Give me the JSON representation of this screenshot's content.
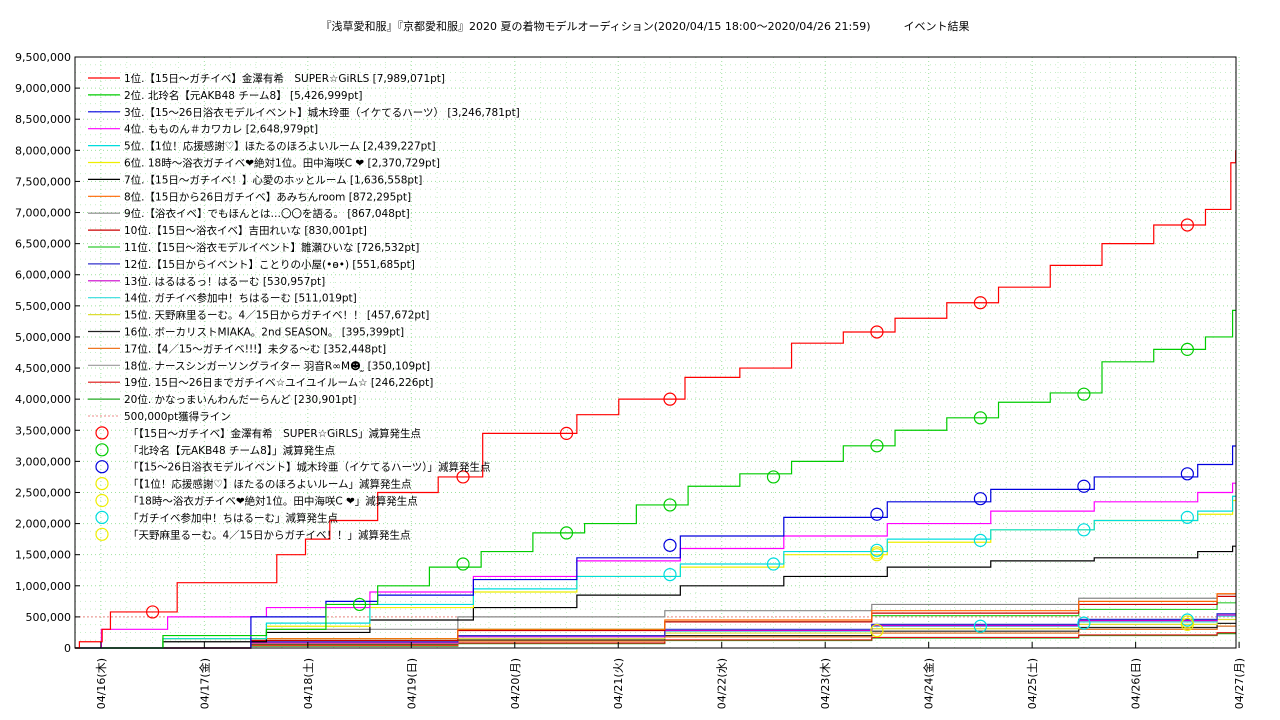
{
  "chart_data": {
    "type": "line",
    "title": "『浅草愛和服』『京都愛和服』2020 夏の着物モデルオーディション(2020/04/15 18:00〜2020/04/26 21:59)　　　イベント結果",
    "xlabel": "",
    "ylabel": "",
    "ylim": [
      0,
      9500000
    ],
    "ytick_step": 500000,
    "y_ticks": [
      "0",
      "500,000",
      "1,000,000",
      "1,500,000",
      "2,000,000",
      "2,500,000",
      "3,000,000",
      "3,500,000",
      "4,000,000",
      "4,500,000",
      "5,000,000",
      "5,500,000",
      "6,000,000",
      "6,500,000",
      "7,000,000",
      "7,500,000",
      "8,000,000",
      "8,500,000",
      "9,000,000",
      "9,500,000"
    ],
    "x_ticks": [
      "04/16(木)",
      "04/17(金)",
      "04/18(土)",
      "04/19(日)",
      "04/20(月)",
      "04/21(火)",
      "04/22(水)",
      "04/23(木)",
      "04/24(金)",
      "04/25(土)",
      "04/26(日)",
      "04/27(月)"
    ],
    "x_range_days": [
      0,
      11.22
    ],
    "x_start_offset_days": 0.25,
    "grid": true,
    "legend_position": "top-left",
    "series": [
      {
        "name": "1位.【15日〜ガチイベ】金澤有希　SUPER☆GiRLS [7,989,071pt]",
        "color": "#ff0000",
        "final": 7989071,
        "points": [
          [
            0,
            0
          ],
          [
            0.05,
            100000
          ],
          [
            0.3,
            300000
          ],
          [
            0.35,
            580000
          ],
          [
            1.1,
            1050000
          ],
          [
            2.1,
            1500000
          ],
          [
            2.25,
            1750000
          ],
          [
            2.5,
            2050000
          ],
          [
            3.0,
            2500000
          ],
          [
            3.6,
            2750000
          ],
          [
            4.0,
            3450000
          ],
          [
            5.0,
            3750000
          ],
          [
            5.3,
            4000000
          ],
          [
            6.0,
            4350000
          ],
          [
            6.5,
            4500000
          ],
          [
            7.0,
            4900000
          ],
          [
            7.5,
            5080000
          ],
          [
            8.0,
            5300000
          ],
          [
            8.5,
            5550000
          ],
          [
            9.0,
            5800000
          ],
          [
            9.5,
            6150000
          ],
          [
            10.0,
            6500000
          ],
          [
            10.5,
            6800000
          ],
          [
            11.0,
            7050000
          ],
          [
            11.2,
            7800000
          ],
          [
            11.22,
            7989071
          ]
        ]
      },
      {
        "name": "2位. 北玲名【元AKB48 チーム8】 [5,426,999pt]",
        "color": "#00cc00",
        "final": 5426999,
        "points": [
          [
            0,
            0
          ],
          [
            1.0,
            200000
          ],
          [
            2.0,
            300000
          ],
          [
            2.5,
            700000
          ],
          [
            3.0,
            1000000
          ],
          [
            3.5,
            1300000
          ],
          [
            4.0,
            1550000
          ],
          [
            4.5,
            1850000
          ],
          [
            5.0,
            2000000
          ],
          [
            5.5,
            2300000
          ],
          [
            6.0,
            2600000
          ],
          [
            6.5,
            2800000
          ],
          [
            7.0,
            3000000
          ],
          [
            7.5,
            3250000
          ],
          [
            8.0,
            3500000
          ],
          [
            8.5,
            3700000
          ],
          [
            9.0,
            3950000
          ],
          [
            9.5,
            4100000
          ],
          [
            10.0,
            4600000
          ],
          [
            10.5,
            4800000
          ],
          [
            11.0,
            5000000
          ],
          [
            11.22,
            5426999
          ]
        ]
      },
      {
        "name": "3位.【15〜26日浴衣モデルイベント】城木玲亜（イケてるハーツ） [3,246,781pt]",
        "color": "#0000dd",
        "final": 3246781,
        "points": [
          [
            0,
            0
          ],
          [
            2.0,
            500000
          ],
          [
            2.5,
            750000
          ],
          [
            3.0,
            850000
          ],
          [
            4.0,
            1100000
          ],
          [
            5.0,
            1450000
          ],
          [
            6.0,
            1800000
          ],
          [
            7.0,
            2100000
          ],
          [
            8.0,
            2350000
          ],
          [
            9.0,
            2550000
          ],
          [
            10.0,
            2750000
          ],
          [
            11.0,
            2950000
          ],
          [
            11.22,
            3246781
          ]
        ]
      },
      {
        "name": "4位. もものん＃カワカレ [2,648,979pt]",
        "color": "#ff00ff",
        "final": 2648979,
        "points": [
          [
            0,
            0
          ],
          [
            0.3,
            300000
          ],
          [
            1.0,
            500000
          ],
          [
            2.0,
            650000
          ],
          [
            3.0,
            900000
          ],
          [
            4.0,
            1150000
          ],
          [
            5.0,
            1400000
          ],
          [
            6.0,
            1600000
          ],
          [
            7.0,
            1800000
          ],
          [
            8.0,
            2000000
          ],
          [
            9.0,
            2200000
          ],
          [
            10.0,
            2350000
          ],
          [
            11.0,
            2500000
          ],
          [
            11.22,
            2648979
          ]
        ]
      },
      {
        "name": "5位.【1位！応援感謝♡】ほたるのほろよいルーム [2,439,227pt]",
        "color": "#00dddd",
        "final": 2439227,
        "points": [
          [
            0,
            0
          ],
          [
            1.0,
            150000
          ],
          [
            2.0,
            400000
          ],
          [
            3.0,
            700000
          ],
          [
            4.0,
            950000
          ],
          [
            5.0,
            1150000
          ],
          [
            6.0,
            1350000
          ],
          [
            7.0,
            1550000
          ],
          [
            8.0,
            1750000
          ],
          [
            9.0,
            1900000
          ],
          [
            10.0,
            2050000
          ],
          [
            11.0,
            2200000
          ],
          [
            11.22,
            2439227
          ]
        ]
      },
      {
        "name": "6位. 18時〜浴衣ガチイベ❤絶対1位。田中海咲C ❤ [2,370,729pt]",
        "color": "#eeee00",
        "final": 2370729,
        "points": [
          [
            0,
            0
          ],
          [
            1.0,
            150000
          ],
          [
            2.0,
            350000
          ],
          [
            3.0,
            650000
          ],
          [
            4.0,
            900000
          ],
          [
            5.0,
            1150000
          ],
          [
            6.0,
            1300000
          ],
          [
            7.0,
            1500000
          ],
          [
            8.0,
            1700000
          ],
          [
            9.0,
            1900000
          ],
          [
            10.0,
            2050000
          ],
          [
            11.0,
            2150000
          ],
          [
            11.22,
            2370729
          ]
        ]
      },
      {
        "name": "7位.【15日〜ガチイベ！】心愛のホッとルーム [1,636,558pt]",
        "color": "#000000",
        "final": 1636558,
        "points": [
          [
            0,
            0
          ],
          [
            1.0,
            100000
          ],
          [
            2.0,
            250000
          ],
          [
            3.0,
            450000
          ],
          [
            4.0,
            650000
          ],
          [
            5.0,
            850000
          ],
          [
            6.0,
            1000000
          ],
          [
            7.0,
            1150000
          ],
          [
            8.0,
            1300000
          ],
          [
            9.0,
            1400000
          ],
          [
            10.0,
            1450000
          ],
          [
            11.0,
            1550000
          ],
          [
            11.22,
            1636558
          ]
        ]
      },
      {
        "name": "8位.【15日から26日ガチイベ】あみちんroom [872,295pt]",
        "color": "#ff6600",
        "final": 872295,
        "points": [
          [
            0,
            0
          ],
          [
            2.0,
            150000
          ],
          [
            4.0,
            300000
          ],
          [
            6.0,
            450000
          ],
          [
            8.0,
            600000
          ],
          [
            10.0,
            750000
          ],
          [
            11.22,
            872295
          ]
        ]
      },
      {
        "name": "9位.【浴衣イベ】でもほんとは…〇〇を語る。 [867,048pt]",
        "color": "#888888",
        "final": 867048,
        "points": [
          [
            0,
            0
          ],
          [
            1.0,
            150000
          ],
          [
            2.0,
            300000
          ],
          [
            4.0,
            500000
          ],
          [
            6.0,
            600000
          ],
          [
            8.0,
            700000
          ],
          [
            10.0,
            800000
          ],
          [
            11.22,
            867048
          ]
        ]
      },
      {
        "name": "10位.【15日〜浴衣イベ】吉田れいな [830,001pt]",
        "color": "#cc0000",
        "final": 830001,
        "points": [
          [
            0,
            0
          ],
          [
            2.0,
            120000
          ],
          [
            4.0,
            280000
          ],
          [
            6.0,
            420000
          ],
          [
            8.0,
            560000
          ],
          [
            10.0,
            700000
          ],
          [
            11.22,
            830001
          ]
        ]
      },
      {
        "name": "11位.【15日〜浴衣モデルイベント】雛瀬ひいな [726,532pt]",
        "color": "#33cc33",
        "final": 726532,
        "points": [
          [
            0,
            0
          ],
          [
            2.0,
            150000
          ],
          [
            4.0,
            300000
          ],
          [
            6.0,
            420000
          ],
          [
            8.0,
            520000
          ],
          [
            10.0,
            620000
          ],
          [
            11.22,
            726532
          ]
        ]
      },
      {
        "name": "12位.【15日からイベント】ことりの小屋(•ө•) [551,685pt]",
        "color": "#3333cc",
        "final": 551685,
        "points": [
          [
            0,
            0
          ],
          [
            2.0,
            100000
          ],
          [
            4.0,
            200000
          ],
          [
            6.0,
            300000
          ],
          [
            8.0,
            380000
          ],
          [
            10.0,
            460000
          ],
          [
            11.22,
            551685
          ]
        ]
      },
      {
        "name": "13位. はるはるっ！はるーむ [530,957pt]",
        "color": "#cc00cc",
        "final": 530957,
        "points": [
          [
            0,
            0
          ],
          [
            2.0,
            80000
          ],
          [
            4.0,
            180000
          ],
          [
            6.0,
            280000
          ],
          [
            8.0,
            360000
          ],
          [
            10.0,
            440000
          ],
          [
            11.22,
            530957
          ]
        ]
      },
      {
        "name": "14位. ガチイベ参加中！ちはるーむ [511,019pt]",
        "color": "#33dddd",
        "final": 511019,
        "points": [
          [
            0,
            0
          ],
          [
            2.0,
            90000
          ],
          [
            4.0,
            190000
          ],
          [
            6.0,
            270000
          ],
          [
            8.0,
            350000
          ],
          [
            10.0,
            420000
          ],
          [
            11.22,
            511019
          ]
        ]
      },
      {
        "name": "15位. 天野麻里るーむ。4／15日からガチイベ！！ [457,672pt]",
        "color": "#dddd33",
        "final": 457672,
        "points": [
          [
            0,
            0
          ],
          [
            2.0,
            70000
          ],
          [
            4.0,
            150000
          ],
          [
            6.0,
            240000
          ],
          [
            8.0,
            310000
          ],
          [
            10.0,
            380000
          ],
          [
            11.22,
            457672
          ]
        ]
      },
      {
        "name": "16位. ボーカリストMIAKA。2nd SEASON。 [395,399pt]",
        "color": "#222222",
        "final": 395399,
        "points": [
          [
            0,
            0
          ],
          [
            2.0,
            60000
          ],
          [
            4.0,
            130000
          ],
          [
            6.0,
            200000
          ],
          [
            8.0,
            270000
          ],
          [
            10.0,
            330000
          ],
          [
            11.22,
            395399
          ]
        ]
      },
      {
        "name": "17位.【4／15〜ガチイベ!!!】未夕る〜む [352,448pt]",
        "color": "#ee7722",
        "final": 352448,
        "points": [
          [
            0,
            0
          ],
          [
            2.0,
            50000
          ],
          [
            4.0,
            110000
          ],
          [
            6.0,
            180000
          ],
          [
            8.0,
            240000
          ],
          [
            10.0,
            300000
          ],
          [
            11.22,
            352448
          ]
        ]
      },
      {
        "name": "18位. ナースシンガーソングライター 羽音R∞M☻ ̫ [350,109pt]",
        "color": "#999999",
        "final": 350109,
        "points": [
          [
            0,
            0
          ],
          [
            2.0,
            60000
          ],
          [
            4.0,
            120000
          ],
          [
            6.0,
            180000
          ],
          [
            8.0,
            240000
          ],
          [
            10.0,
            300000
          ],
          [
            11.22,
            350109
          ]
        ]
      },
      {
        "name": "19位. 15日〜26日までガチイベ☆ユイユイルーム☆ [246,226pt]",
        "color": "#dd1111",
        "final": 246226,
        "points": [
          [
            0,
            0
          ],
          [
            2.0,
            40000
          ],
          [
            4.0,
            80000
          ],
          [
            6.0,
            130000
          ],
          [
            8.0,
            170000
          ],
          [
            10.0,
            210000
          ],
          [
            11.22,
            246226
          ]
        ]
      },
      {
        "name": "20位. かなっまいんわんだーらんど [230,901pt]",
        "color": "#22aa22",
        "final": 230901,
        "points": [
          [
            0,
            0
          ],
          [
            2.0,
            30000
          ],
          [
            4.0,
            70000
          ],
          [
            6.0,
            120000
          ],
          [
            8.0,
            160000
          ],
          [
            10.0,
            200000
          ],
          [
            11.22,
            230901
          ]
        ]
      }
    ],
    "reference_line": {
      "name": "500,000pt獲得ライン",
      "value": 500000,
      "color": "#ee8888"
    },
    "markers": [
      {
        "label": "「【15日〜ガチイベ】金澤有希　SUPER☆GiRLS」減算発生点",
        "color": "#ff0000",
        "points": [
          [
            0.75,
            580000
          ],
          [
            3.75,
            2750000
          ],
          [
            4.75,
            3450000
          ],
          [
            5.75,
            4000000
          ],
          [
            7.75,
            5080000
          ],
          [
            8.75,
            5550000
          ],
          [
            10.75,
            6800000
          ]
        ]
      },
      {
        "label": "「北玲名【元AKB48 チーム8】」減算発生点",
        "color": "#00cc00",
        "points": [
          [
            2.75,
            700000
          ],
          [
            3.75,
            1350000
          ],
          [
            4.75,
            1850000
          ],
          [
            5.75,
            2300000
          ],
          [
            6.75,
            2750000
          ],
          [
            7.75,
            3250000
          ],
          [
            8.75,
            3700000
          ],
          [
            9.75,
            4080000
          ],
          [
            10.75,
            4800000
          ]
        ]
      },
      {
        "label": "「【15〜26日浴衣モデルイベント】城木玲亜（イケてるハーツ）」減算発生点",
        "color": "#0000dd",
        "points": [
          [
            5.75,
            1650000
          ],
          [
            7.75,
            2150000
          ],
          [
            8.75,
            2400000
          ],
          [
            9.75,
            2600000
          ],
          [
            10.75,
            2800000
          ]
        ]
      },
      {
        "label": "「【1位！応援感謝♡】ほたるのほろよいルーム」減算発生点",
        "color": "#eeee00",
        "points": [
          [
            7.75,
            1500000
          ],
          [
            7.75,
            280000
          ],
          [
            10.75,
            420000
          ]
        ]
      },
      {
        "label": "「18時〜浴衣ガチイベ❤絶対1位。田中海咲C ❤」減算発生点",
        "color": "#eeee00",
        "points": [
          [
            7.75,
            1530000
          ]
        ]
      },
      {
        "label": "「ガチイベ参加中！ちはるーむ」減算発生点",
        "color": "#00dddd",
        "points": [
          [
            5.75,
            1180000
          ],
          [
            6.75,
            1350000
          ],
          [
            7.75,
            1570000
          ],
          [
            8.75,
            1730000
          ],
          [
            9.75,
            1900000
          ],
          [
            10.75,
            2100000
          ],
          [
            8.75,
            350000
          ],
          [
            9.75,
            400000
          ],
          [
            10.75,
            450000
          ]
        ]
      },
      {
        "label": "「天野麻里るーむ。4／15日からガチイベ！！」減算発生点",
        "color": "#eeee00",
        "points": [
          [
            10.75,
            380000
          ]
        ]
      }
    ]
  }
}
